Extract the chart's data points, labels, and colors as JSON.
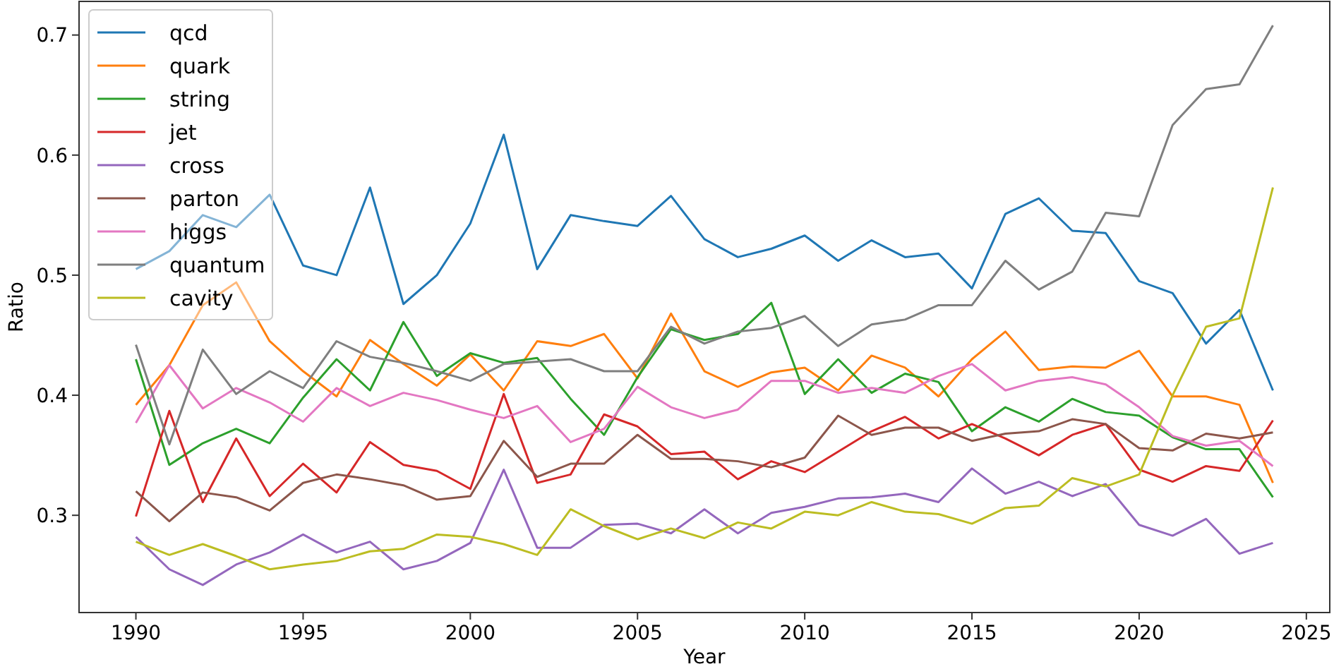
{
  "chart_data": {
    "type": "line",
    "xlabel": "Year",
    "ylabel": "Ratio",
    "xlim": [
      1988.3,
      2025.7
    ],
    "ylim": [
      0.219,
      0.728
    ],
    "xticks": [
      1990,
      1995,
      2000,
      2005,
      2010,
      2015,
      2020,
      2025
    ],
    "yticks": [
      0.3,
      0.4,
      0.5,
      0.6,
      0.7
    ],
    "legend": "top left",
    "grid": false,
    "x": [
      1990,
      1991,
      1992,
      1993,
      1994,
      1995,
      1996,
      1997,
      1998,
      1999,
      2000,
      2001,
      2002,
      2003,
      2004,
      2005,
      2006,
      2007,
      2008,
      2009,
      2010,
      2011,
      2012,
      2013,
      2014,
      2015,
      2016,
      2017,
      2018,
      2019,
      2020,
      2021,
      2022,
      2023,
      2024
    ],
    "series": [
      {
        "name": "qcd",
        "color": "#1f77b4",
        "values": [
          0.505,
          0.52,
          0.55,
          0.54,
          0.567,
          0.508,
          0.5,
          0.573,
          0.476,
          0.5,
          0.543,
          0.617,
          0.505,
          0.55,
          0.545,
          0.541,
          0.566,
          0.53,
          0.515,
          0.522,
          0.533,
          0.512,
          0.529,
          0.515,
          0.518,
          0.489,
          0.551,
          0.564,
          0.537,
          0.535,
          0.495,
          0.485,
          0.443,
          0.471,
          0.404
        ]
      },
      {
        "name": "quark",
        "color": "#ff7f0e",
        "values": [
          0.392,
          0.425,
          0.475,
          0.494,
          0.445,
          0.42,
          0.399,
          0.446,
          0.426,
          0.408,
          0.434,
          0.404,
          0.445,
          0.441,
          0.451,
          0.414,
          0.468,
          0.42,
          0.407,
          0.419,
          0.423,
          0.404,
          0.433,
          0.423,
          0.399,
          0.43,
          0.453,
          0.421,
          0.424,
          0.423,
          0.437,
          0.399,
          0.399,
          0.392,
          0.327
        ]
      },
      {
        "name": "string",
        "color": "#2ca02c",
        "values": [
          0.43,
          0.342,
          0.36,
          0.372,
          0.36,
          0.398,
          0.43,
          0.404,
          0.461,
          0.416,
          0.435,
          0.427,
          0.431,
          0.397,
          0.367,
          0.415,
          0.455,
          0.446,
          0.451,
          0.477,
          0.401,
          0.43,
          0.402,
          0.418,
          0.411,
          0.37,
          0.39,
          0.378,
          0.397,
          0.386,
          0.383,
          0.365,
          0.355,
          0.355,
          0.315
        ]
      },
      {
        "name": "jet",
        "color": "#d62728",
        "values": [
          0.299,
          0.387,
          0.311,
          0.364,
          0.316,
          0.343,
          0.319,
          0.361,
          0.342,
          0.337,
          0.322,
          0.401,
          0.327,
          0.334,
          0.384,
          0.374,
          0.351,
          0.353,
          0.33,
          0.345,
          0.336,
          0.353,
          0.37,
          0.382,
          0.364,
          0.376,
          0.364,
          0.35,
          0.367,
          0.376,
          0.338,
          0.328,
          0.341,
          0.337,
          0.379
        ]
      },
      {
        "name": "cross",
        "color": "#9467bd",
        "values": [
          0.282,
          0.255,
          0.242,
          0.259,
          0.269,
          0.284,
          0.269,
          0.278,
          0.255,
          0.262,
          0.277,
          0.338,
          0.273,
          0.273,
          0.292,
          0.293,
          0.285,
          0.305,
          0.285,
          0.302,
          0.307,
          0.314,
          0.315,
          0.318,
          0.311,
          0.339,
          0.318,
          0.328,
          0.316,
          0.326,
          0.292,
          0.283,
          0.297,
          0.268,
          0.277
        ]
      },
      {
        "name": "parton",
        "color": "#8c564b",
        "values": [
          0.32,
          0.295,
          0.319,
          0.315,
          0.304,
          0.327,
          0.334,
          0.33,
          0.325,
          0.313,
          0.316,
          0.362,
          0.332,
          0.343,
          0.343,
          0.367,
          0.347,
          0.347,
          0.345,
          0.34,
          0.348,
          0.383,
          0.367,
          0.373,
          0.373,
          0.362,
          0.368,
          0.37,
          0.38,
          0.376,
          0.356,
          0.354,
          0.368,
          0.364,
          0.369
        ]
      },
      {
        "name": "higgs",
        "color": "#e377c2",
        "values": [
          0.377,
          0.425,
          0.389,
          0.406,
          0.394,
          0.378,
          0.406,
          0.391,
          0.402,
          0.396,
          0.388,
          0.381,
          0.391,
          0.361,
          0.372,
          0.407,
          0.39,
          0.381,
          0.388,
          0.412,
          0.412,
          0.402,
          0.406,
          0.402,
          0.416,
          0.426,
          0.404,
          0.412,
          0.415,
          0.409,
          0.39,
          0.366,
          0.358,
          0.362,
          0.341
        ]
      },
      {
        "name": "quantum",
        "color": "#7f7f7f",
        "values": [
          0.442,
          0.359,
          0.438,
          0.401,
          0.42,
          0.406,
          0.445,
          0.432,
          0.427,
          0.42,
          0.412,
          0.426,
          0.428,
          0.43,
          0.42,
          0.42,
          0.457,
          0.443,
          0.453,
          0.456,
          0.466,
          0.441,
          0.459,
          0.463,
          0.475,
          0.475,
          0.512,
          0.488,
          0.503,
          0.552,
          0.549,
          0.625,
          0.655,
          0.659,
          0.708
        ]
      },
      {
        "name": "cavity",
        "color": "#bcbd22",
        "values": [
          0.278,
          0.267,
          0.276,
          0.266,
          0.255,
          0.259,
          0.262,
          0.27,
          0.272,
          0.284,
          0.282,
          0.276,
          0.267,
          0.305,
          0.291,
          0.28,
          0.289,
          0.281,
          0.294,
          0.289,
          0.303,
          0.3,
          0.311,
          0.303,
          0.301,
          0.293,
          0.306,
          0.308,
          0.331,
          0.324,
          0.334,
          0.4,
          0.457,
          0.464,
          0.573
        ]
      }
    ]
  }
}
